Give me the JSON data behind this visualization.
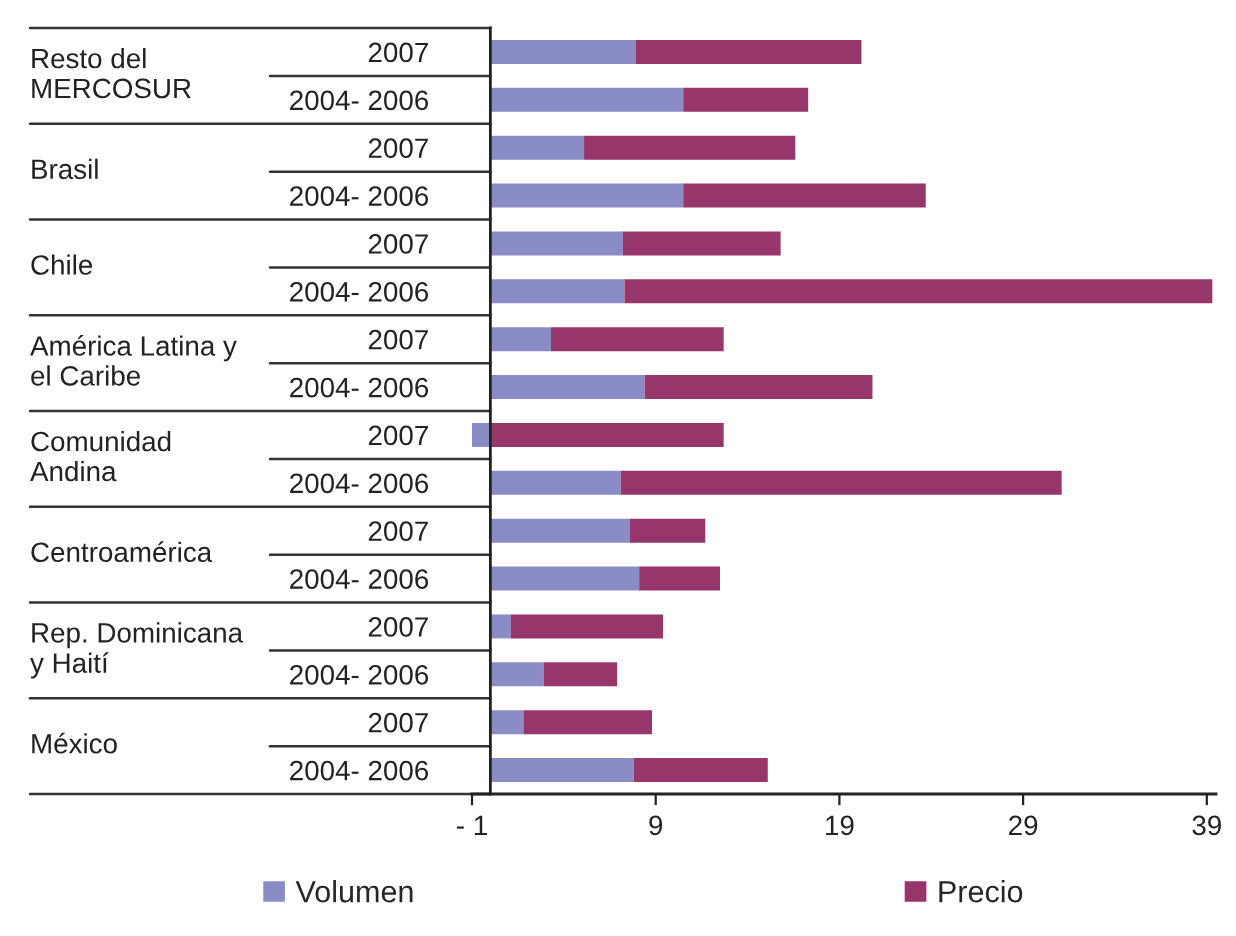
{
  "chart_data": {
    "type": "bar",
    "orientation": "horizontal",
    "stacked": true,
    "categories": [
      "2007",
      "2004- 2006",
      "2007",
      "2004- 2006",
      "2007",
      "2004- 2006",
      "2007",
      "2004- 2006",
      "2007",
      "2004- 2006",
      "2007",
      "2004- 2006",
      "2007",
      "2004- 2006",
      "2007",
      "2004- 2006"
    ],
    "series": [
      {
        "name": "Volumen",
        "color": "#8a8cc6",
        "values": [
          7.9,
          10.5,
          5.1,
          10.5,
          7.2,
          7.3,
          3.3,
          8.4,
          -1.0,
          7.1,
          7.6,
          8.1,
          1.1,
          2.9,
          1.8,
          7.8
        ]
      },
      {
        "name": "Precio",
        "color": "#96366b",
        "values": [
          12.3,
          6.8,
          11.5,
          13.2,
          8.6,
          32.0,
          9.4,
          12.4,
          12.7,
          24.0,
          4.1,
          4.4,
          8.3,
          4.0,
          7.0,
          7.3
        ]
      }
    ],
    "annotations": [
      "Resto del\nMERCOSUR",
      "Brasil",
      "Chile",
      "América Latina y\nel Caribe",
      "Comunidad\nAndina",
      "Centroamérica",
      "Rep. Dominicana\ny Haití",
      "México"
    ],
    "xlim": [
      -1,
      39.5
    ],
    "xticks": [
      {
        "value": -1,
        "label": "- 1"
      },
      9,
      19,
      29,
      39
    ],
    "grid": false,
    "legend": "bottom"
  }
}
